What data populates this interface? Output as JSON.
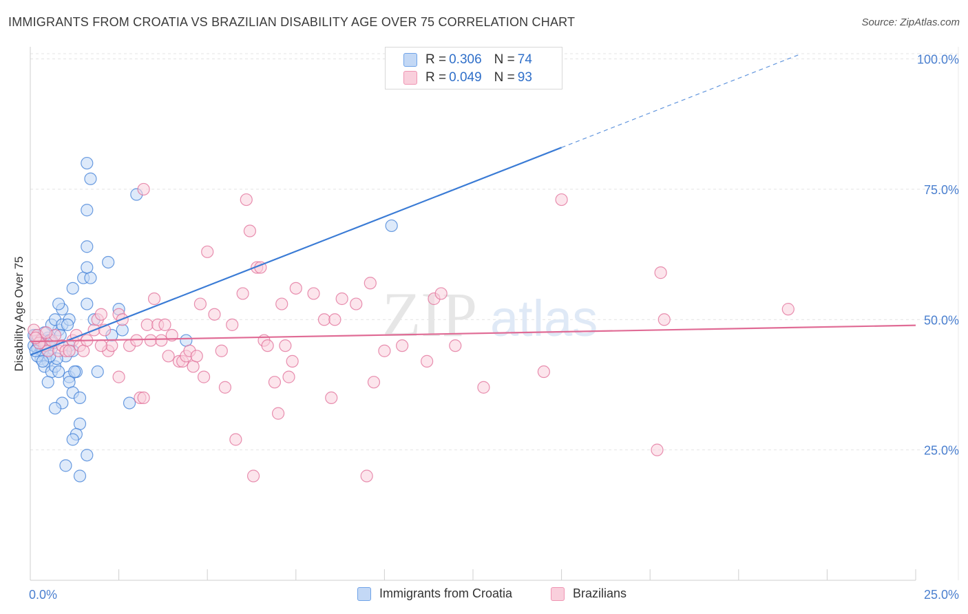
{
  "title": "IMMIGRANTS FROM CROATIA VS BRAZILIAN DISABILITY AGE OVER 75 CORRELATION CHART",
  "source": "Source: ZipAtlas.com",
  "watermark": {
    "zip": "ZIP",
    "atlas": "atlas"
  },
  "legend": {
    "rows": [
      {
        "r_label": "R =",
        "r_value": "0.306",
        "n_label": "N =",
        "n_value": "74",
        "color": "#6fa3e8",
        "fill": "#c3d8f5"
      },
      {
        "r_label": "R =",
        "r_value": "0.049",
        "n_label": "N =",
        "n_value": "93",
        "color": "#ef94b2",
        "fill": "#f9cfdc"
      }
    ]
  },
  "bottom_legend": [
    {
      "label": "Immigrants from Croatia",
      "color": "#6fa3e8",
      "fill": "#c3d8f5"
    },
    {
      "label": "Brazilians",
      "color": "#ef94b2",
      "fill": "#f9cfdc"
    }
  ],
  "chart_data": {
    "type": "scatter",
    "xlabel": "",
    "ylabel": "Disability Age Over 75",
    "xlim": [
      0,
      25
    ],
    "ylim": [
      0,
      101
    ],
    "x_tick_labels": [
      {
        "value": 0,
        "label": "0.0%"
      },
      {
        "value": 25,
        "label": "25.0%"
      }
    ],
    "y_tick_labels": [
      {
        "value": 25,
        "label": "25.0%"
      },
      {
        "value": 50,
        "label": "50.0%"
      },
      {
        "value": 75,
        "label": "75.0%"
      },
      {
        "value": 100,
        "label": "100.0%"
      }
    ],
    "series": [
      {
        "name": "Immigrants from Croatia",
        "color": "#3a7bd5",
        "fill": "#c3d8f5",
        "trend": {
          "x0": 0,
          "y0": 43.2,
          "x1": 15,
          "y1": 83.0,
          "dash_to_x": 21.7,
          "dash_to_y": 100.8
        },
        "points": [
          [
            0.1,
            45
          ],
          [
            0.2,
            44.5
          ],
          [
            0.15,
            47
          ],
          [
            0.2,
            46
          ],
          [
            0.3,
            45
          ],
          [
            0.3,
            44
          ],
          [
            0.4,
            46
          ],
          [
            0.5,
            46.5
          ],
          [
            0.4,
            43
          ],
          [
            0.3,
            42.5
          ],
          [
            0.6,
            44.5
          ],
          [
            0.5,
            42
          ],
          [
            0.4,
            41
          ],
          [
            0.6,
            40
          ],
          [
            0.7,
            41
          ],
          [
            0.8,
            40
          ],
          [
            0.5,
            38
          ],
          [
            0.8,
            48
          ],
          [
            0.6,
            49
          ],
          [
            0.7,
            50
          ],
          [
            0.9,
            49
          ],
          [
            0.9,
            52
          ],
          [
            0.8,
            53
          ],
          [
            1.1,
            45
          ],
          [
            1.1,
            50
          ],
          [
            1.0,
            43
          ],
          [
            1.2,
            44
          ],
          [
            1.1,
            39
          ],
          [
            1.3,
            40
          ],
          [
            1.1,
            38
          ],
          [
            1.2,
            36
          ],
          [
            1.4,
            35
          ],
          [
            0.9,
            34
          ],
          [
            0.7,
            33
          ],
          [
            1.4,
            30
          ],
          [
            1.3,
            28
          ],
          [
            1.2,
            27
          ],
          [
            1.6,
            24
          ],
          [
            1.0,
            22
          ],
          [
            1.4,
            20
          ],
          [
            1.6,
            53
          ],
          [
            1.5,
            58
          ],
          [
            1.7,
            58
          ],
          [
            1.6,
            60
          ],
          [
            1.6,
            64
          ],
          [
            1.6,
            71
          ],
          [
            1.6,
            80
          ],
          [
            1.7,
            77
          ],
          [
            1.2,
            56
          ],
          [
            2.2,
            61
          ],
          [
            2.5,
            52
          ],
          [
            2.6,
            48
          ],
          [
            1.8,
            50
          ],
          [
            2.3,
            47
          ],
          [
            1.9,
            40
          ],
          [
            2.8,
            34
          ],
          [
            3.0,
            74
          ],
          [
            4.4,
            46
          ],
          [
            10.2,
            68
          ],
          [
            0.2,
            43
          ],
          [
            0.1,
            47
          ],
          [
            0.4,
            47.5
          ],
          [
            0.25,
            45.5
          ],
          [
            0.35,
            44
          ],
          [
            0.45,
            45
          ],
          [
            0.55,
            46
          ],
          [
            0.65,
            45.5
          ],
          [
            0.15,
            44
          ],
          [
            0.75,
            42.5
          ],
          [
            0.85,
            47
          ],
          [
            1.05,
            49
          ],
          [
            1.25,
            40
          ],
          [
            0.55,
            43
          ],
          [
            0.35,
            42
          ]
        ]
      },
      {
        "name": "Brazilians",
        "color": "#e06b95",
        "fill": "#f9cfdc",
        "trend": {
          "x0": 0,
          "y0": 45.8,
          "x1": 25,
          "y1": 48.9
        },
        "points": [
          [
            0.1,
            48
          ],
          [
            0.2,
            47
          ],
          [
            0.3,
            46
          ],
          [
            0.4,
            45
          ],
          [
            0.5,
            44
          ],
          [
            0.6,
            46
          ],
          [
            0.7,
            47
          ],
          [
            0.8,
            44
          ],
          [
            0.9,
            45
          ],
          [
            1.0,
            44
          ],
          [
            1.2,
            46
          ],
          [
            1.3,
            47
          ],
          [
            1.4,
            45
          ],
          [
            1.5,
            44
          ],
          [
            1.6,
            46
          ],
          [
            1.8,
            48
          ],
          [
            1.9,
            50
          ],
          [
            2.0,
            51
          ],
          [
            2.1,
            48
          ],
          [
            2.2,
            44
          ],
          [
            2.3,
            45
          ],
          [
            2.5,
            51
          ],
          [
            2.6,
            50
          ],
          [
            2.5,
            39
          ],
          [
            2.8,
            45
          ],
          [
            3.0,
            46
          ],
          [
            3.1,
            35
          ],
          [
            3.2,
            35
          ],
          [
            3.3,
            49
          ],
          [
            3.4,
            46
          ],
          [
            3.5,
            54
          ],
          [
            3.6,
            49
          ],
          [
            3.7,
            46
          ],
          [
            3.8,
            49
          ],
          [
            3.9,
            43
          ],
          [
            4.0,
            47
          ],
          [
            4.2,
            42
          ],
          [
            4.3,
            42
          ],
          [
            4.4,
            43
          ],
          [
            4.5,
            44
          ],
          [
            4.6,
            41
          ],
          [
            4.7,
            43
          ],
          [
            4.8,
            53
          ],
          [
            4.9,
            39
          ],
          [
            5.2,
            51
          ],
          [
            5.4,
            44
          ],
          [
            5.5,
            37
          ],
          [
            5.7,
            49
          ],
          [
            5.8,
            27
          ],
          [
            6.0,
            55
          ],
          [
            6.1,
            73
          ],
          [
            6.2,
            67
          ],
          [
            6.3,
            20
          ],
          [
            6.4,
            60
          ],
          [
            6.5,
            60
          ],
          [
            6.6,
            46
          ],
          [
            6.7,
            45
          ],
          [
            6.9,
            38
          ],
          [
            7.0,
            32
          ],
          [
            7.1,
            53
          ],
          [
            7.2,
            45
          ],
          [
            7.3,
            39
          ],
          [
            7.4,
            42
          ],
          [
            7.5,
            56
          ],
          [
            8.0,
            55
          ],
          [
            8.3,
            50
          ],
          [
            8.5,
            35
          ],
          [
            8.6,
            50
          ],
          [
            8.8,
            54
          ],
          [
            9.2,
            53
          ],
          [
            9.5,
            20
          ],
          [
            9.6,
            57
          ],
          [
            9.7,
            38
          ],
          [
            10.0,
            44
          ],
          [
            10.5,
            45
          ],
          [
            11.2,
            42
          ],
          [
            11.4,
            54
          ],
          [
            11.6,
            55
          ],
          [
            12.0,
            45
          ],
          [
            12.8,
            37
          ],
          [
            14.5,
            40
          ],
          [
            15.0,
            73
          ],
          [
            17.7,
            25
          ],
          [
            17.8,
            59
          ],
          [
            17.9,
            50
          ],
          [
            21.4,
            52
          ],
          [
            3.2,
            75
          ],
          [
            5.0,
            63
          ],
          [
            2.0,
            45
          ],
          [
            1.1,
            44
          ],
          [
            0.25,
            45.5
          ],
          [
            0.15,
            46.5
          ],
          [
            0.45,
            47.5
          ]
        ]
      }
    ]
  }
}
